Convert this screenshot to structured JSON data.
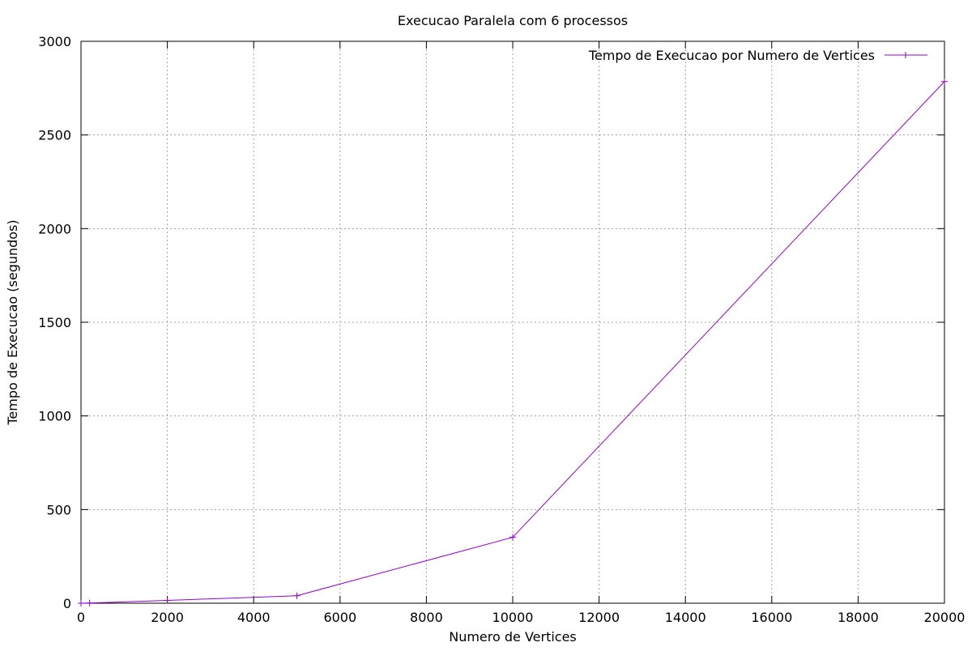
{
  "chart_data": {
    "type": "line",
    "title": "Execucao Paralela com 6 processos",
    "xlabel": "Numero de Vertices",
    "ylabel": "Tempo de Execucao (segundos)",
    "xlim": [
      0,
      20000
    ],
    "ylim": [
      0,
      3000
    ],
    "xticks": [
      0,
      2000,
      4000,
      6000,
      8000,
      10000,
      12000,
      14000,
      16000,
      18000,
      20000
    ],
    "yticks": [
      0,
      500,
      1000,
      1500,
      2000,
      2500,
      3000
    ],
    "grid": true,
    "legend_position": "top-right",
    "series": [
      {
        "name": "Tempo de Execucao por Numero de Vertices",
        "color": "#9400d3",
        "marker": "plus",
        "x": [
          0,
          200,
          2000,
          5000,
          10000,
          20000
        ],
        "y": [
          0,
          1,
          15,
          40,
          352,
          2785
        ]
      }
    ]
  }
}
